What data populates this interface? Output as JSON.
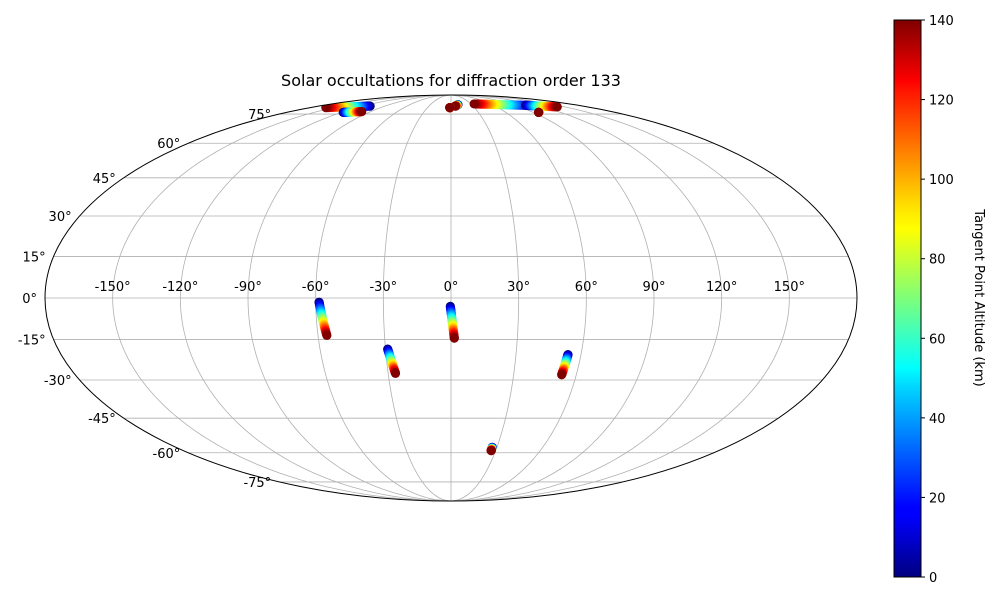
{
  "chart_data": {
    "type": "scatter",
    "projection": "mollweide",
    "title": "Solar occultations for diffraction order 133",
    "grid": true,
    "lon_ticks": [
      -150,
      -120,
      -90,
      -60,
      -30,
      0,
      30,
      60,
      90,
      120,
      150
    ],
    "lon_tick_labels": [
      "-150°",
      "-120°",
      "-90°",
      "-60°",
      "-30°",
      "0°",
      "30°",
      "60°",
      "90°",
      "120°",
      "150°"
    ],
    "lat_ticks": [
      75,
      60,
      45,
      30,
      15,
      0,
      -15,
      -30,
      -45,
      -60,
      -75
    ],
    "lat_tick_labels": [
      "75°",
      "60°",
      "45°",
      "30°",
      "15°",
      "0°",
      "-15°",
      "-30°",
      "-45°",
      "-60°",
      "-75°"
    ],
    "colorbar": {
      "label": "Tangent Point Altitude (km)",
      "colormap": "jet",
      "range": [
        0,
        140
      ],
      "ticks": [
        0,
        20,
        40,
        60,
        80,
        100,
        120,
        140
      ],
      "tick_labels": [
        "0",
        "20",
        "40",
        "60",
        "80",
        "100",
        "120",
        "140"
      ]
    },
    "tracks": [
      {
        "lon0": -58.5,
        "lat0": -1.5,
        "lon1": -56.0,
        "lat1": -13.5
      },
      {
        "lon0": -29.0,
        "lat0": -18.5,
        "lon1": -26.5,
        "lat1": -27.5
      },
      {
        "lon0": -0.3,
        "lat0": -3.0,
        "lon1": 1.5,
        "lat1": -14.5
      },
      {
        "lon0": 54.0,
        "lat0": -20.5,
        "lon1": 53.0,
        "lat1": -28.0
      },
      {
        "lon0": 27.0,
        "lat0": -57.5,
        "lon1": 27.0,
        "lat1": -59.0
      },
      {
        "lon0": -110.0,
        "lat0": 80.0,
        "lon1": -160.0,
        "lat1": 79.0
      },
      {
        "lon0": -118.0,
        "lat0": 76.0,
        "lon1": -100.0,
        "lat1": 76.5
      },
      {
        "lon0": 10.0,
        "lat0": 81.0,
        "lon1": 6.0,
        "lat1": 80.0
      },
      {
        "lon0": 110.0,
        "lat0": 80.5,
        "lon1": 35.0,
        "lat1": 81.5
      },
      {
        "lon0": 105.0,
        "lat0": 80.5,
        "lon1": 140.0,
        "lat1": 79.5
      },
      {
        "lon0": 96.0,
        "lat0": 76.0,
        "lon1": 96.0,
        "lat1": 76.0
      },
      {
        "lon0": -1.5,
        "lat0": 79.0,
        "lon1": -1.5,
        "lat1": 79.0
      }
    ]
  }
}
